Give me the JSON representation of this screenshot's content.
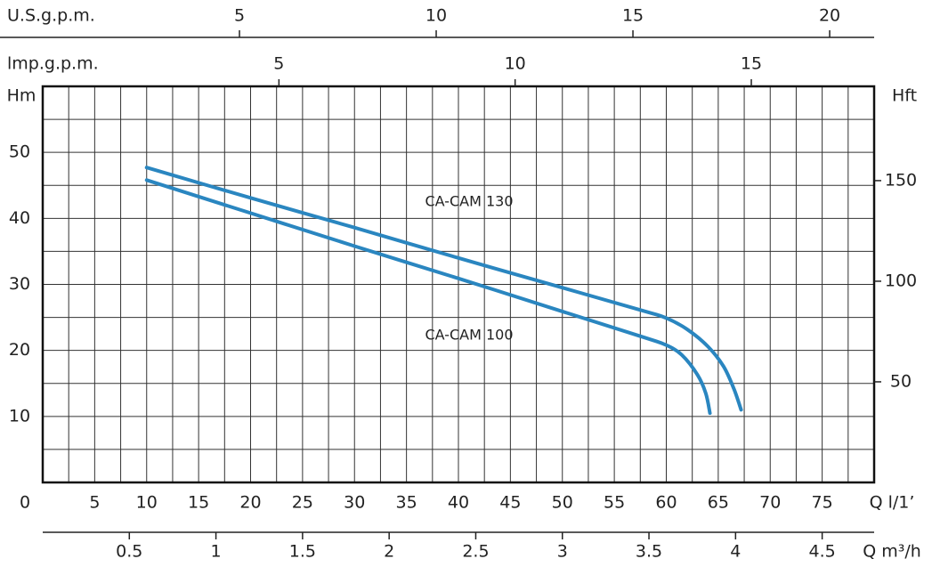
{
  "chart_data": {
    "type": "line",
    "y_label": "Hm",
    "y2_label": "Hft",
    "x_label": "Q  l/1’",
    "xlim": [
      0,
      80
    ],
    "xticks": [
      0,
      5,
      10,
      15,
      20,
      25,
      30,
      35,
      40,
      45,
      50,
      55,
      60,
      65,
      70,
      75
    ],
    "xgrid": [
      0,
      2.5,
      5,
      7.5,
      10,
      12.5,
      15,
      17.5,
      20,
      22.5,
      25,
      27.5,
      30,
      32.5,
      35,
      37.5,
      40,
      42.5,
      45,
      47.5,
      50,
      52.5,
      55,
      57.5,
      60,
      62.5,
      65,
      67.5,
      70,
      72.5,
      75,
      77.5,
      80
    ],
    "ylim": [
      0,
      60
    ],
    "yticks": [
      10,
      20,
      30,
      40,
      50
    ],
    "ygrid": [
      0,
      5,
      10,
      15,
      20,
      25,
      30,
      35,
      40,
      45,
      50,
      55,
      60
    ],
    "y2lim": [
      0,
      196.85
    ],
    "y2ticks": [
      50,
      100,
      150
    ],
    "grid": true,
    "extra_x_axes": [
      {
        "label": "U.S.g.p.m.",
        "lim": [
          0,
          21.13
        ],
        "ticks": [
          5,
          10,
          15,
          20
        ]
      },
      {
        "label": "lmp.g.p.m.",
        "lim": [
          0,
          17.6
        ],
        "ticks": [
          5,
          10,
          15
        ]
      },
      {
        "label": "Q  m³/h",
        "lim": [
          0,
          4.8
        ],
        "ticks": [
          0.5,
          1,
          1.5,
          2,
          2.5,
          3,
          3.5,
          4,
          4.5
        ]
      }
    ],
    "series": [
      {
        "name": "CA-CAM 130",
        "color": "#2a86c0",
        "x": [
          10,
          20,
          30,
          40,
          50,
          58,
          60,
          62,
          64,
          65.5,
          66.5,
          67.2
        ],
        "values": [
          47.7,
          43.1,
          38.6,
          34.0,
          29.5,
          25.9,
          24.9,
          23.2,
          20.6,
          17.6,
          14.2,
          11.0
        ]
      },
      {
        "name": "CA-CAM 100",
        "color": "#2a86c0",
        "x": [
          10,
          20,
          30,
          40,
          50,
          58,
          60,
          61.5,
          63,
          63.8,
          64.2
        ],
        "values": [
          45.8,
          40.8,
          35.8,
          30.9,
          25.9,
          21.9,
          20.8,
          19.3,
          16.3,
          13.5,
          10.5
        ]
      }
    ]
  }
}
